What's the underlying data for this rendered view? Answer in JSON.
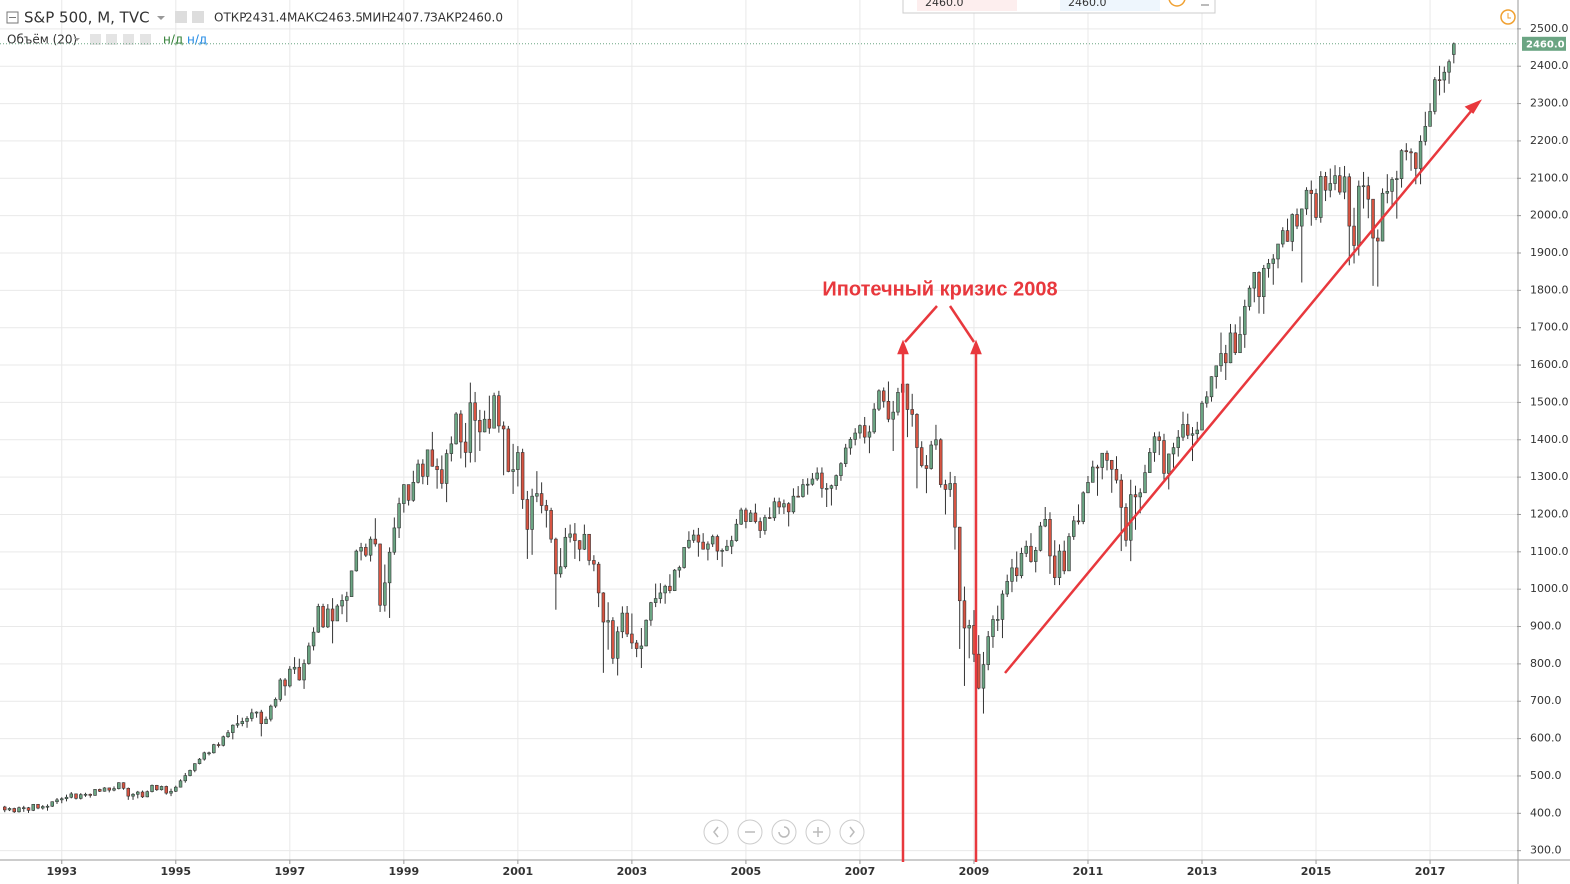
{
  "header": {
    "title": "S&P 500, M, TVC",
    "ohlc": [
      {
        "label": "ОТКР",
        "value": "2431.4"
      },
      {
        "label": "МАКС",
        "value": "2463.5"
      },
      {
        "label": "МИН",
        "value": "2407.7"
      },
      {
        "label": "ЗАКР",
        "value": "2460.0"
      }
    ]
  },
  "indicator": {
    "name": "Объём (20)",
    "values": [
      "н/д",
      "н/д"
    ]
  },
  "order_panel": {
    "values": [
      "2460.0",
      "2460.0"
    ]
  },
  "chart_data": {
    "type": "candlestick",
    "up_color": "#6ba583",
    "down_color": "#d75442",
    "grid": true,
    "annotation": "Ипотечный кризис 2008",
    "last_price": {
      "value": 2460,
      "label": "2460.0"
    },
    "xlim": [
      -1,
      318.3
    ],
    "xticks": [
      {
        "value": 12,
        "label": "1993"
      },
      {
        "value": 36,
        "label": "1995"
      },
      {
        "value": 60,
        "label": "1997"
      },
      {
        "value": 84,
        "label": "1999"
      },
      {
        "value": 108,
        "label": "2001"
      },
      {
        "value": 132,
        "label": "2003"
      },
      {
        "value": 156,
        "label": "2005"
      },
      {
        "value": 180,
        "label": "2007"
      },
      {
        "value": 204,
        "label": "2009"
      },
      {
        "value": 228,
        "label": "2011"
      },
      {
        "value": 252,
        "label": "2013"
      },
      {
        "value": 276,
        "label": "2015"
      },
      {
        "value": 300,
        "label": "2017"
      }
    ],
    "ylim": [
      275,
      2513
    ],
    "yticks": [
      {
        "value": 300,
        "label": "300.0"
      },
      {
        "value": 400,
        "label": "400.0"
      },
      {
        "value": 500,
        "label": "500.0"
      },
      {
        "value": 600,
        "label": "600.0"
      },
      {
        "value": 700,
        "label": "700.0"
      },
      {
        "value": 800,
        "label": "800.0"
      },
      {
        "value": 900,
        "label": "900.0"
      },
      {
        "value": 1000,
        "label": "1000.0"
      },
      {
        "value": 1100,
        "label": "1100.0"
      },
      {
        "value": 1200,
        "label": "1200.0"
      },
      {
        "value": 1300,
        "label": "1300.0"
      },
      {
        "value": 1400,
        "label": "1400.0"
      },
      {
        "value": 1500,
        "label": "1500.0"
      },
      {
        "value": 1600,
        "label": "1600.0"
      },
      {
        "value": 1700,
        "label": "1700.0"
      },
      {
        "value": 1800,
        "label": "1800.0"
      },
      {
        "value": 1900,
        "label": "1900.0"
      },
      {
        "value": 2000,
        "label": "2000.0"
      },
      {
        "value": 2100,
        "label": "2100.0"
      },
      {
        "value": 2200,
        "label": "2200.0"
      },
      {
        "value": 2300,
        "label": "2300.0"
      },
      {
        "value": 2400,
        "label": "2400.0"
      },
      {
        "value": 2500,
        "label": "2500.0"
      }
    ],
    "open": [
      417,
      409,
      413,
      404,
      415,
      415,
      408,
      424,
      414,
      418,
      419,
      431,
      436,
      439,
      443,
      452,
      440,
      450,
      451,
      448,
      464,
      459,
      468,
      462,
      466,
      482,
      467,
      446,
      451,
      457,
      444,
      458,
      475,
      463,
      472,
      454,
      459,
      470,
      487,
      501,
      515,
      533,
      545,
      562,
      562,
      584,
      582,
      605,
      616,
      636,
      640,
      646,
      654,
      669,
      671,
      640,
      652,
      687,
      705,
      757,
      741,
      786,
      791,
      757,
      801,
      848,
      885,
      954,
      899,
      947,
      915,
      955,
      970,
      980,
      1049,
      1102,
      1112,
      1091,
      1134,
      1121,
      957,
      1017,
      1099,
      1164,
      1229,
      1280,
      1238,
      1286,
      1335,
      1302,
      1373,
      1329,
      1320,
      1283,
      1363,
      1389,
      1469,
      1394,
      1366,
      1499,
      1452,
      1421,
      1455,
      1431,
      1518,
      1437,
      1429,
      1315,
      1320,
      1366,
      1240,
      1160,
      1249,
      1256,
      1224,
      1211,
      1134,
      1041,
      1060,
      1139,
      1148,
      1130,
      1107,
      1147,
      1077,
      1067,
      990,
      912,
      916,
      815,
      886,
      936,
      880,
      856,
      841,
      848,
      917,
      964,
      975,
      990,
      1008,
      996,
      1051,
      1058,
      1112,
      1131,
      1145,
      1126,
      1107,
      1121,
      1141,
      1102,
      1104,
      1115,
      1130,
      1174,
      1212,
      1181,
      1204,
      1181,
      1157,
      1192,
      1191,
      1234,
      1220,
      1229,
      1207,
      1249,
      1248,
      1280,
      1281,
      1295,
      1311,
      1270,
      1270,
      1277,
      1304,
      1336,
      1378,
      1401,
      1418,
      1438,
      1407,
      1421,
      1482,
      1531,
      1503,
      1455,
      1474,
      1527,
      1549,
      1481,
      1468,
      1379,
      1331,
      1323,
      1386,
      1400,
      1280,
      1267,
      1283,
      1166,
      969,
      896,
      903,
      826,
      735,
      798,
      873,
      919,
      919,
      987,
      1021,
      1057,
      1036,
      1096,
      1115,
      1074,
      1104,
      1169,
      1187,
      1089,
      1031,
      1102,
      1049,
      1141,
      1183,
      1181,
      1258,
      1286,
      1327,
      1326,
      1364,
      1345,
      1321,
      1292,
      1219,
      1131,
      1253,
      1247,
      1258,
      1312,
      1366,
      1408,
      1398,
      1310,
      1362,
      1379,
      1407,
      1441,
      1412,
      1416,
      1426,
      1498,
      1515,
      1569,
      1598,
      1631,
      1606,
      1686,
      1633,
      1682,
      1757,
      1806,
      1848,
      1783,
      1859,
      1872,
      1884,
      1924,
      1960,
      1931,
      2003,
      1972,
      2018,
      2068,
      2059,
      1995,
      2105,
      2068,
      2086,
      2107,
      2063,
      2104,
      1972,
      1920,
      2079,
      2080,
      2044,
      1940,
      1932,
      2060,
      2065,
      2097,
      2099,
      2174,
      2171,
      2168,
      2126,
      2199,
      2239,
      2279,
      2364,
      2363,
      2384,
      2431.4
    ],
    "high": [
      420,
      416,
      415,
      418,
      420,
      417,
      425,
      425,
      422,
      424,
      432,
      441,
      443,
      450,
      457,
      453,
      454,
      455,
      453,
      465,
      466,
      470,
      469,
      472,
      483,
      483,
      469,
      454,
      460,
      461,
      461,
      477,
      476,
      474,
      474,
      466,
      474,
      491,
      508,
      517,
      534,
      548,
      565,
      565,
      586,
      590,
      608,
      623,
      638,
      663,
      656,
      660,
      680,
      673,
      677,
      659,
      691,
      710,
      762,
      762,
      794,
      818,
      814,
      812,
      857,
      898,
      961,
      961,
      960,
      976,
      960,
      986,
      993,
      1050,
      1106,
      1124,
      1122,
      1141,
      1190,
      1122,
      1066,
      1112,
      1192,
      1245,
      1281,
      1280,
      1317,
      1347,
      1348,
      1373,
      1421,
      1350,
      1358,
      1374,
      1409,
      1474,
      1479,
      1445,
      1553,
      1528,
      1480,
      1478,
      1518,
      1526,
      1531,
      1449,
      1437,
      1389,
      1383,
      1376,
      1263,
      1269,
      1316,
      1286,
      1239,
      1218,
      1138,
      1110,
      1164,
      1173,
      1177,
      1131,
      1173,
      1147,
      1091,
      1073,
      992,
      965,
      925,
      900,
      954,
      955,
      935,
      864,
      896,
      919,
      966,
      1015,
      1016,
      1012,
      1040,
      1054,
      1063,
      1112,
      1155,
      1159,
      1164,
      1150,
      1128,
      1146,
      1146,
      1109,
      1132,
      1143,
      1188,
      1218,
      1218,
      1212,
      1229,
      1192,
      1199,
      1219,
      1245,
      1245,
      1240,
      1233,
      1270,
      1276,
      1295,
      1297,
      1311,
      1326,
      1326,
      1284,
      1280,
      1307,
      1340,
      1389,
      1407,
      1431,
      1441,
      1461,
      1438,
      1498,
      1535,
      1540,
      1556,
      1504,
      1539,
      1576,
      1550,
      1523,
      1471,
      1396,
      1359,
      1397,
      1440,
      1404,
      1293,
      1314,
      1303,
      1167,
      1007,
      918,
      944,
      877,
      832,
      888,
      930,
      956,
      997,
      1039,
      1081,
      1101,
      1111,
      1130,
      1150,
      1113,
      1180,
      1220,
      1206,
      1131,
      1120,
      1130,
      1150,
      1196,
      1227,
      1262,
      1303,
      1344,
      1333,
      1364,
      1371,
      1346,
      1356,
      1308,
      1230,
      1293,
      1277,
      1270,
      1333,
      1378,
      1420,
      1422,
      1416,
      1363,
      1392,
      1426,
      1475,
      1470,
      1434,
      1448,
      1504,
      1530,
      1570,
      1598,
      1687,
      1654,
      1710,
      1709,
      1730,
      1775,
      1813,
      1849,
      1851,
      1868,
      1884,
      1897,
      1924,
      1969,
      1992,
      2006,
      2019,
      2019,
      2076,
      2094,
      2072,
      2119,
      2117,
      2126,
      2135,
      2130,
      2133,
      2113,
      2021,
      2094,
      2117,
      2104,
      2038,
      1963,
      2073,
      2111,
      2103,
      2120,
      2178,
      2194,
      2180,
      2170,
      2215,
      2278,
      2301,
      2371,
      2401,
      2399,
      2418,
      2463.5
    ],
    "low": [
      403,
      406,
      401,
      402,
      404,
      401,
      406,
      411,
      410,
      407,
      417,
      425,
      427,
      432,
      440,
      437,
      437,
      444,
      442,
      447,
      457,
      458,
      456,
      459,
      464,
      463,
      436,
      436,
      440,
      441,
      443,
      456,
      460,
      461,
      450,
      446,
      457,
      469,
      482,
      499,
      510,
      531,
      541,
      555,
      560,
      576,
      579,
      602,
      598,
      629,
      633,
      629,
      646,
      656,
      606,
      639,
      646,
      682,
      699,
      715,
      737,
      773,
      755,
      733,
      798,
      836,
      883,
      896,
      896,
      855,
      920,
      933,
      912,
      980,
      1047,
      1077,
      1086,
      1074,
      1114,
      939,
      940,
      923,
      1092,
      1137,
      1205,
      1224,
      1234,
      1283,
      1281,
      1279,
      1328,
      1269,
      1269,
      1233,
      1342,
      1387,
      1350,
      1326,
      1339,
      1340,
      1370,
      1420,
      1416,
      1431,
      1419,
      1305,
      1313,
      1255,
      1275,
      1215,
      1081,
      1092,
      1233,
      1203,
      1165,
      1124,
      945,
      1031,
      1055,
      1125,
      1081,
      1075,
      1105,
      1064,
      1048,
      952,
      776,
      838,
      800,
      769,
      869,
      872,
      840,
      818,
      789,
      847,
      902,
      952,
      962,
      961,
      989,
      995,
      1031,
      1055,
      1108,
      1124,
      1087,
      1106,
      1077,
      1113,
      1078,
      1060,
      1102,
      1094,
      1127,
      1172,
      1163,
      1180,
      1176,
      1137,
      1146,
      1188,
      1183,
      1201,
      1201,
      1168,
      1202,
      1246,
      1245,
      1253,
      1277,
      1290,
      1245,
      1220,
      1224,
      1266,
      1290,
      1327,
      1360,
      1385,
      1403,
      1390,
      1364,
      1416,
      1477,
      1486,
      1447,
      1370,
      1465,
      1489,
      1407,
      1435,
      1270,
      1326,
      1257,
      1320,
      1373,
      1272,
      1200,
      1247,
      1106,
      840,
      741,
      815,
      805,
      732,
      667,
      783,
      843,
      888,
      869,
      979,
      992,
      1020,
      1029,
      1086,
      1071,
      1045,
      1101,
      1166,
      1041,
      1011,
      1011,
      1040,
      1050,
      1132,
      1173,
      1174,
      1257,
      1294,
      1250,
      1294,
      1318,
      1258,
      1283,
      1102,
      1114,
      1075,
      1159,
      1203,
      1258,
      1311,
      1341,
      1359,
      1292,
      1267,
      1325,
      1355,
      1397,
      1402,
      1343,
      1398,
      1426,
      1486,
      1502,
      1537,
      1582,
      1560,
      1605,
      1627,
      1633,
      1646,
      1746,
      1768,
      1738,
      1737,
      1834,
      1815,
      1859,
      1915,
      1930,
      1905,
      1964,
      1821,
      2002,
      1973,
      1988,
      1981,
      2039,
      2049,
      2068,
      2056,
      2044,
      1867,
      1872,
      1893,
      2019,
      1993,
      1812,
      1810,
      1931,
      2033,
      2025,
      1992,
      2075,
      2148,
      2120,
      2084,
      2084,
      2188,
      2245,
      2271,
      2322,
      2329,
      2353,
      2407.7
    ],
    "close": [
      409,
      413,
      404,
      415,
      415,
      408,
      424,
      414,
      418,
      419,
      431,
      436,
      439,
      443,
      452,
      440,
      450,
      451,
      448,
      464,
      459,
      468,
      462,
      466,
      482,
      467,
      446,
      451,
      457,
      444,
      458,
      475,
      463,
      472,
      454,
      459,
      470,
      487,
      501,
      515,
      533,
      545,
      562,
      562,
      584,
      582,
      605,
      616,
      636,
      640,
      646,
      654,
      669,
      671,
      640,
      652,
      687,
      705,
      757,
      741,
      786,
      791,
      757,
      801,
      848,
      885,
      954,
      899,
      947,
      915,
      955,
      970,
      980,
      1049,
      1102,
      1112,
      1091,
      1134,
      1121,
      957,
      1017,
      1099,
      1164,
      1229,
      1280,
      1238,
      1286,
      1335,
      1302,
      1373,
      1329,
      1320,
      1283,
      1363,
      1389,
      1469,
      1394,
      1366,
      1499,
      1452,
      1421,
      1455,
      1431,
      1518,
      1437,
      1429,
      1315,
      1320,
      1366,
      1240,
      1160,
      1249,
      1256,
      1224,
      1211,
      1134,
      1041,
      1060,
      1139,
      1148,
      1130,
      1107,
      1147,
      1077,
      1067,
      990,
      912,
      916,
      815,
      886,
      936,
      880,
      856,
      841,
      848,
      917,
      964,
      975,
      990,
      1008,
      996,
      1051,
      1058,
      1112,
      1131,
      1145,
      1126,
      1107,
      1121,
      1141,
      1102,
      1104,
      1115,
      1130,
      1174,
      1212,
      1181,
      1204,
      1181,
      1157,
      1192,
      1191,
      1234,
      1220,
      1229,
      1207,
      1249,
      1248,
      1280,
      1281,
      1295,
      1311,
      1270,
      1270,
      1277,
      1304,
      1336,
      1378,
      1401,
      1418,
      1438,
      1407,
      1421,
      1482,
      1531,
      1503,
      1455,
      1474,
      1527,
      1549,
      1481,
      1468,
      1379,
      1331,
      1323,
      1386,
      1400,
      1280,
      1267,
      1283,
      1166,
      969,
      896,
      903,
      826,
      735,
      798,
      873,
      919,
      919,
      987,
      1021,
      1057,
      1036,
      1096,
      1115,
      1074,
      1104,
      1169,
      1187,
      1089,
      1031,
      1102,
      1049,
      1141,
      1183,
      1181,
      1258,
      1286,
      1327,
      1326,
      1364,
      1345,
      1321,
      1292,
      1219,
      1131,
      1253,
      1247,
      1258,
      1312,
      1366,
      1408,
      1398,
      1310,
      1362,
      1379,
      1407,
      1441,
      1412,
      1416,
      1426,
      1498,
      1515,
      1569,
      1598,
      1631,
      1606,
      1686,
      1633,
      1682,
      1757,
      1806,
      1848,
      1783,
      1859,
      1872,
      1884,
      1924,
      1960,
      1931,
      2003,
      1972,
      2018,
      2068,
      2059,
      1995,
      2105,
      2068,
      2086,
      2107,
      2063,
      2104,
      1972,
      1920,
      2079,
      2080,
      2044,
      1940,
      1932,
      2060,
      2065,
      2097,
      2099,
      2174,
      2171,
      2168,
      2126,
      2199,
      2239,
      2279,
      2364,
      2363,
      2384,
      2412,
      2460
    ]
  }
}
